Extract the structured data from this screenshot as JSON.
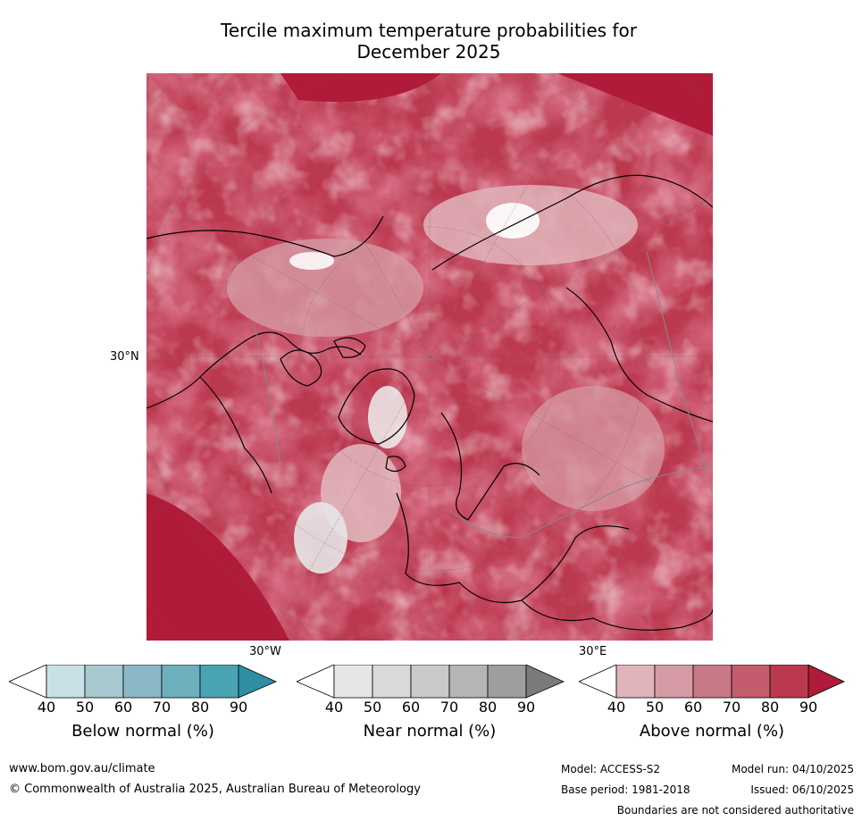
{
  "title_line1": "Tercile maximum temperature probabilities for",
  "title_line2": "December 2025",
  "map": {
    "lat_label": "30°N",
    "lon_label_left": "30°W",
    "lon_label_right": "30°E"
  },
  "colorbars": [
    {
      "title": "Below normal (%)",
      "ticks": [
        "40",
        "50",
        "60",
        "70",
        "80",
        "90"
      ],
      "colors": [
        "#ffffff",
        "#c8e1e7",
        "#a7c8ce",
        "#8ab8c4",
        "#6eafbd",
        "#4aa3b3",
        "#2e8fa3"
      ]
    },
    {
      "title": "Near normal (%)",
      "ticks": [
        "40",
        "50",
        "60",
        "70",
        "80",
        "90"
      ],
      "colors": [
        "#ffffff",
        "#e6e6e6",
        "#d9d9d9",
        "#c9c9c9",
        "#b5b5b5",
        "#9e9e9e",
        "#7b7b7b"
      ]
    },
    {
      "title": "Above normal (%)",
      "ticks": [
        "40",
        "50",
        "60",
        "70",
        "80",
        "90"
      ],
      "colors": [
        "#ffffff",
        "#e0b4ba",
        "#d59aa3",
        "#c97985",
        "#c35c6c",
        "#bb394f",
        "#b01b3a"
      ]
    }
  ],
  "footer": {
    "website": "www.bom.gov.au/climate",
    "copyright": "© Commonwealth of Australia 2025, Australian Bureau of Meteorology",
    "model": "Model: ACCESS-S2",
    "base_period": "Base period: 1981-2018",
    "model_run": "Model run: 04/10/2025",
    "issued": "Issued: 06/10/2025",
    "disclaimer": "Boundaries are not considered authoritative"
  }
}
